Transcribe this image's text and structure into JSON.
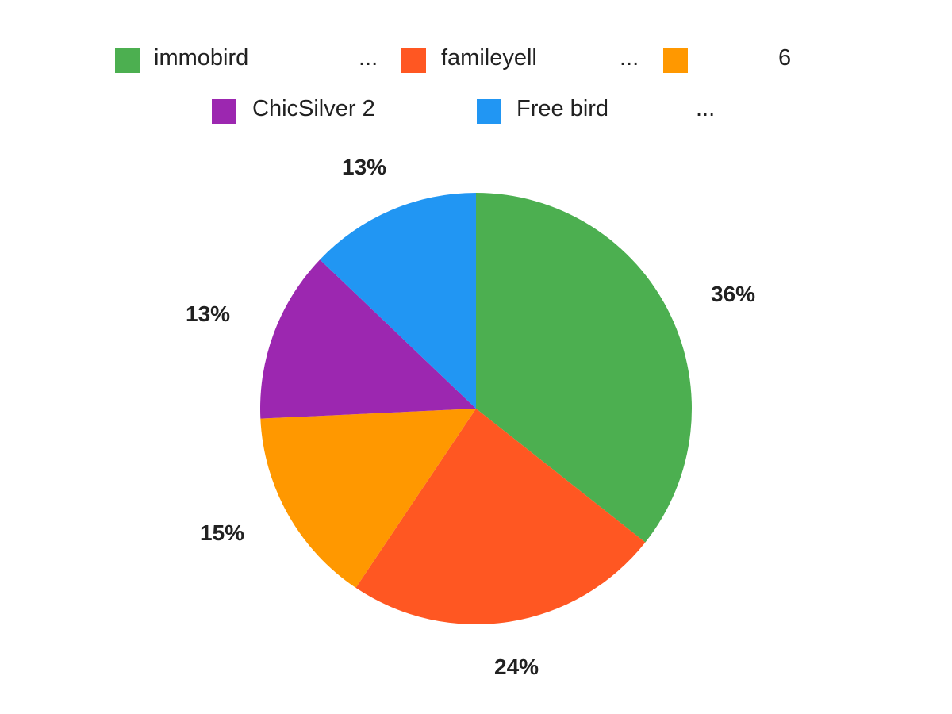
{
  "legend": {
    "items": [
      {
        "label": "immobird",
        "color": "#4CAF50",
        "truncated": true
      },
      {
        "label": "famileyell",
        "color": "#FF5722",
        "truncated": true
      },
      {
        "label": "6",
        "color": "#FF9800",
        "truncated": false
      },
      {
        "label": "ChicSilver 2",
        "color": "#9C27B0",
        "truncated": false
      },
      {
        "label": "Free bird",
        "color": "#2196F3",
        "truncated": true
      }
    ],
    "ellipsis": "..."
  },
  "slice_labels": [
    "36%",
    "24%",
    "15%",
    "13%",
    "13%"
  ],
  "chart_data": {
    "type": "pie",
    "title": "",
    "categories": [
      "immobird",
      "famileyell",
      "6",
      "ChicSilver 2",
      "Free bird"
    ],
    "values": [
      36,
      24,
      15,
      13,
      13
    ],
    "value_labels": [
      "36%",
      "24%",
      "15%",
      "13%",
      "13%"
    ],
    "colors": [
      "#4CAF50",
      "#FF5722",
      "#FF9800",
      "#9C27B0",
      "#2196F3"
    ],
    "start_angle": "12 o'clock",
    "direction": "clockwise",
    "legend_position": "top"
  }
}
